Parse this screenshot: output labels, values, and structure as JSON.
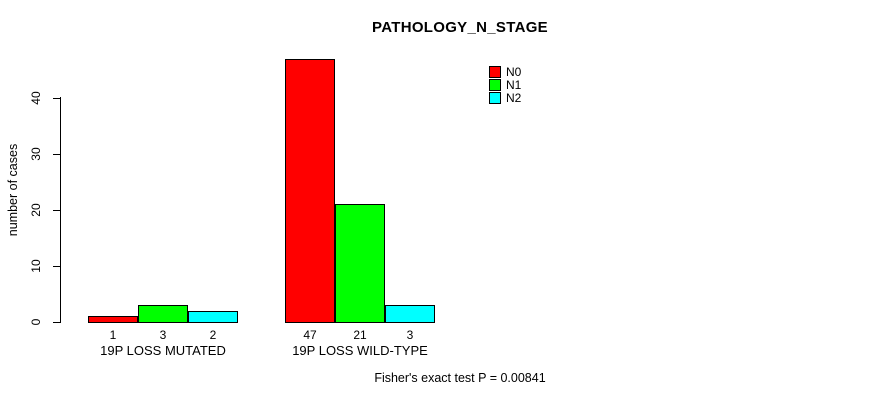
{
  "chart_data": {
    "type": "bar",
    "title": "PATHOLOGY_N_STAGE",
    "xlabel": "",
    "ylabel": "number of cases",
    "ylim": [
      0,
      47
    ],
    "yticks": [
      0,
      10,
      20,
      30,
      40
    ],
    "grid": false,
    "legend_position": "top-right",
    "categories": [
      "19P LOSS MUTATED",
      "19P LOSS WILD-TYPE"
    ],
    "series": [
      {
        "name": "N0",
        "color": "#ff0000",
        "values": [
          1,
          47
        ]
      },
      {
        "name": "N1",
        "color": "#00ff00",
        "values": [
          3,
          21
        ]
      },
      {
        "name": "N2",
        "color": "#00ffff",
        "values": [
          2,
          3
        ]
      }
    ],
    "bar_value_labels": [
      [
        1,
        3,
        2
      ],
      [
        47,
        21,
        3
      ]
    ],
    "bar_border_color": "#000000",
    "footnote": "Fisher's exact test P = 0.00841"
  }
}
